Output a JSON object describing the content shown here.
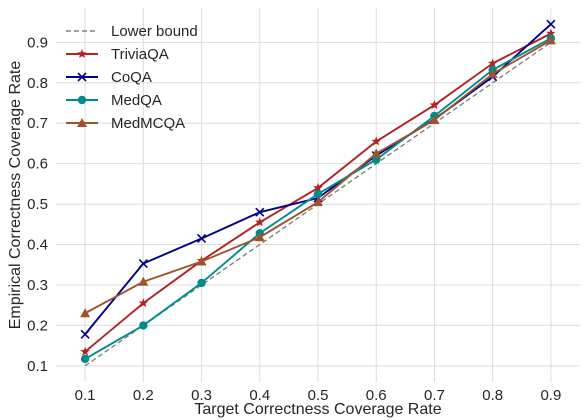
{
  "chart_data": {
    "type": "line",
    "xlabel": "Target Correctness Coverage Rate",
    "ylabel": "Empirical Correctness Coverage Rate",
    "xlim": [
      0.05,
      0.95
    ],
    "ylim": [
      0.06,
      0.985
    ],
    "xticks": [
      "0.1",
      "0.2",
      "0.3",
      "0.4",
      "0.5",
      "0.6",
      "0.7",
      "0.8",
      "0.9"
    ],
    "yticks": [
      "0.1",
      "0.2",
      "0.3",
      "0.4",
      "0.5",
      "0.6",
      "0.7",
      "0.8",
      "0.9"
    ],
    "grid": true,
    "legend_position": "top-left",
    "x": [
      0.1,
      0.2,
      0.3,
      0.4,
      0.5,
      0.6,
      0.7,
      0.8,
      0.9
    ],
    "series": [
      {
        "name": "Lower bound",
        "color": "#808080",
        "marker": "none",
        "style": "dashed",
        "values": [
          0.1,
          0.2,
          0.3,
          0.4,
          0.5,
          0.6,
          0.7,
          0.8,
          0.9
        ]
      },
      {
        "name": "TriviaQA",
        "color": "#b22222",
        "marker": "star",
        "style": "solid",
        "values": [
          0.135,
          0.255,
          0.36,
          0.455,
          0.54,
          0.655,
          0.745,
          0.848,
          0.922
        ]
      },
      {
        "name": "CoQA",
        "color": "#00008b",
        "marker": "x",
        "style": "solid",
        "values": [
          0.178,
          0.353,
          0.415,
          0.48,
          0.515,
          0.62,
          0.71,
          0.815,
          0.945
        ]
      },
      {
        "name": "MedQA",
        "color": "#008b8b",
        "marker": "circle",
        "style": "solid",
        "values": [
          0.117,
          0.2,
          0.305,
          0.428,
          0.525,
          0.61,
          0.718,
          0.832,
          0.91
        ]
      },
      {
        "name": "MedMCQA",
        "color": "#a0522d",
        "marker": "triangle",
        "style": "solid",
        "values": [
          0.23,
          0.308,
          0.358,
          0.418,
          0.505,
          0.625,
          0.708,
          0.822,
          0.905
        ]
      }
    ]
  }
}
